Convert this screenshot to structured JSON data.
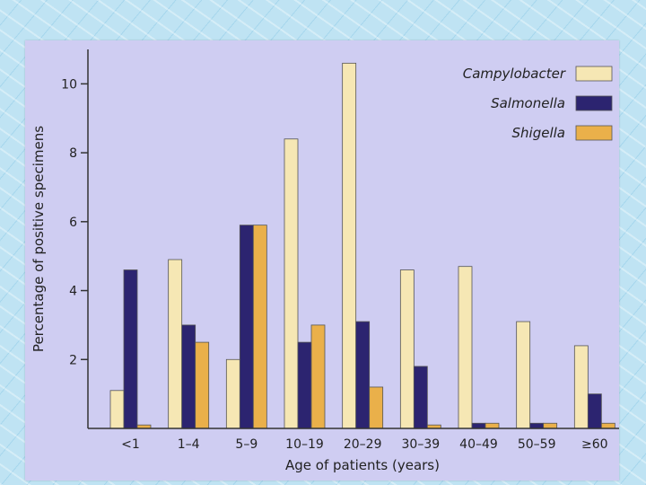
{
  "chart_data": {
    "type": "bar",
    "title": "",
    "xlabel": "Age of patients (years)",
    "ylabel": "Percentage of positive specimens",
    "categories": [
      "<1",
      "1–4",
      "5–9",
      "10–19",
      "20–29",
      "30–39",
      "40–49",
      "50–59",
      "≥60"
    ],
    "yticks": [
      "2",
      "4",
      "6",
      "8",
      "10"
    ],
    "ylim": [
      0,
      11
    ],
    "grid": false,
    "legend_position": "top-right",
    "series": [
      {
        "name": "Campylobacter",
        "color": "#f6e7b4",
        "values": [
          1.1,
          4.9,
          2.0,
          8.4,
          10.6,
          4.6,
          4.7,
          3.1,
          2.4
        ]
      },
      {
        "name": "Salmonella",
        "color": "#2c2470",
        "values": [
          4.6,
          3.0,
          5.9,
          2.5,
          3.1,
          1.8,
          0.15,
          0.15,
          1.0
        ]
      },
      {
        "name": "Shigella",
        "color": "#eab04a",
        "values": [
          0.1,
          2.5,
          5.9,
          3.0,
          1.2,
          0.1,
          0.15,
          0.15,
          0.15
        ]
      }
    ]
  }
}
